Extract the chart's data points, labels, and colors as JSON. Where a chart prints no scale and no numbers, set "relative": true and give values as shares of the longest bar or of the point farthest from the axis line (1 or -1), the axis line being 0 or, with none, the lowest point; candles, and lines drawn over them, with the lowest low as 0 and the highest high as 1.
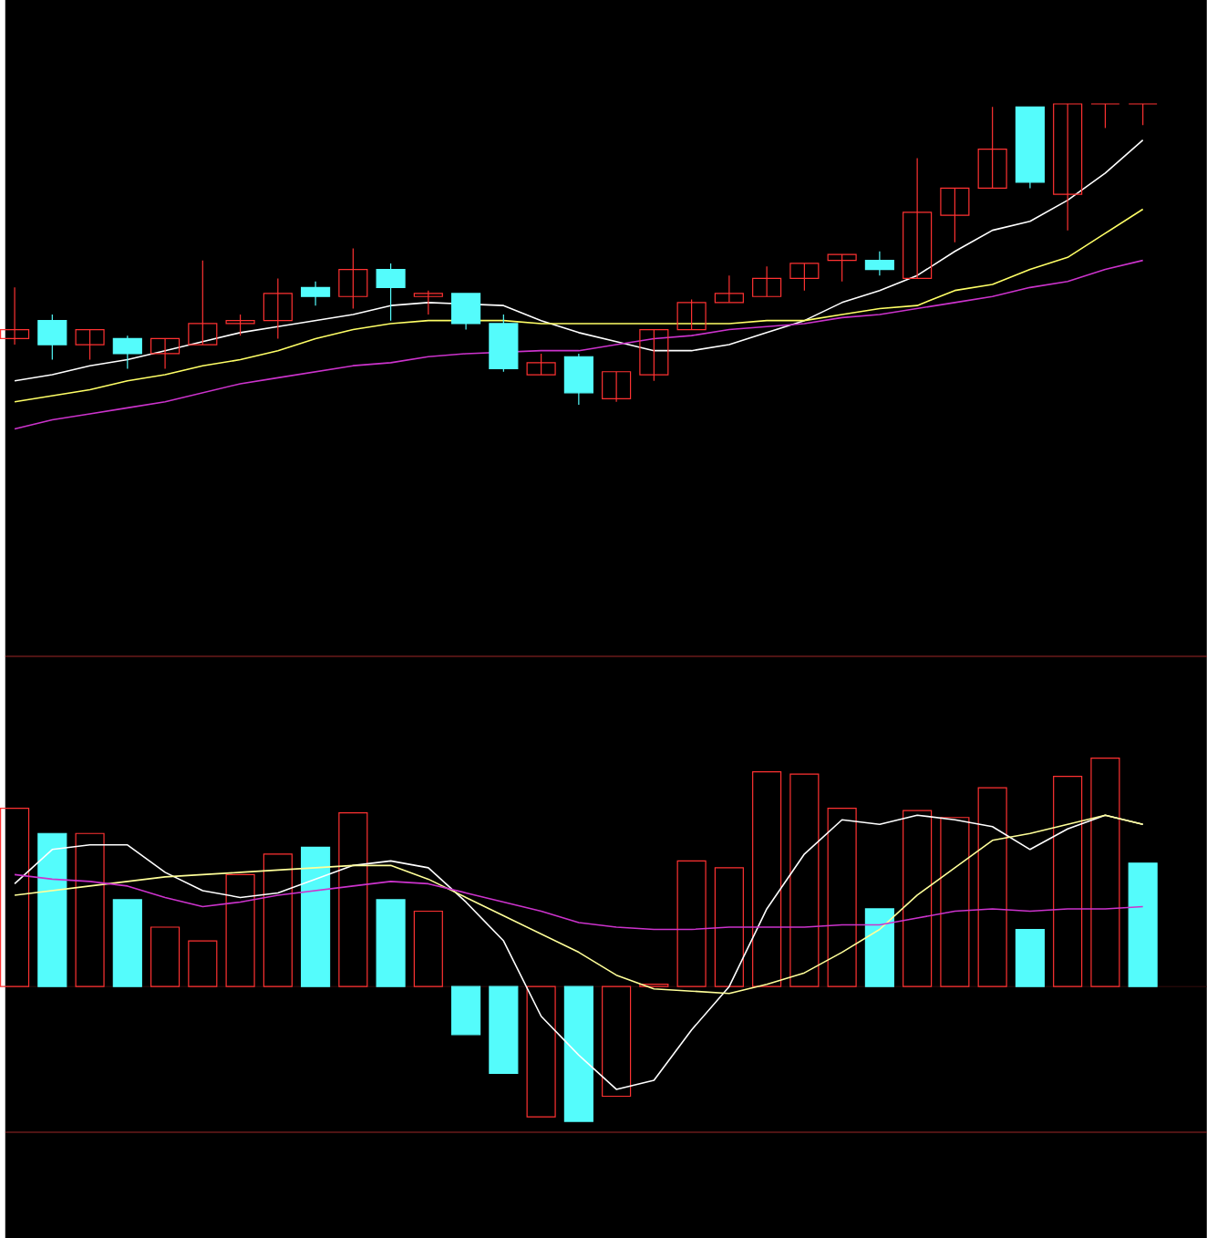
{
  "chart_data": [
    {
      "type": "candlestick",
      "relative": true,
      "categories": [
        null,
        null,
        null,
        null,
        null,
        null,
        null,
        null,
        null,
        null,
        null,
        null,
        null,
        null,
        null,
        null,
        null,
        null,
        null,
        null,
        null,
        null,
        null,
        null,
        null,
        null,
        null,
        null,
        null,
        null,
        null
      ],
      "ohlc": [
        [
          0.22,
          0.39,
          0.2,
          0.25
        ],
        [
          0.28,
          0.3,
          0.15,
          0.2
        ],
        [
          0.2,
          0.25,
          0.15,
          0.25
        ],
        [
          0.22,
          0.23,
          0.12,
          0.17
        ],
        [
          0.17,
          0.22,
          0.12,
          0.22
        ],
        [
          0.2,
          0.48,
          0.2,
          0.27
        ],
        [
          0.27,
          0.3,
          0.23,
          0.28
        ],
        [
          0.28,
          0.42,
          0.22,
          0.37
        ],
        [
          0.39,
          0.41,
          0.33,
          0.36
        ],
        [
          0.36,
          0.52,
          0.32,
          0.45
        ],
        [
          0.45,
          0.47,
          0.28,
          0.39
        ],
        [
          0.36,
          0.38,
          0.3,
          0.37
        ],
        [
          0.37,
          0.37,
          0.25,
          0.27
        ],
        [
          0.27,
          0.3,
          0.11,
          0.12
        ],
        [
          0.1,
          0.17,
          0.1,
          0.14
        ],
        [
          0.16,
          0.17,
          0,
          0.04
        ],
        [
          0.02,
          0.11,
          0.01,
          0.11
        ],
        [
          0.1,
          0.25,
          0.08,
          0.25
        ],
        [
          0.25,
          0.35,
          0.25,
          0.34
        ],
        [
          0.34,
          0.43,
          0.34,
          0.37
        ],
        [
          0.36,
          0.46,
          0.36,
          0.42
        ],
        [
          0.42,
          0.47,
          0.38,
          0.47
        ],
        [
          0.48,
          0.5,
          0.41,
          0.5
        ],
        [
          0.48,
          0.51,
          0.43,
          0.45
        ],
        [
          0.42,
          0.82,
          0.42,
          0.64
        ],
        [
          0.63,
          0.72,
          0.54,
          0.72
        ],
        [
          0.72,
          0.99,
          0.72,
          0.85
        ],
        [
          0.99,
          0.99,
          0.72,
          0.74
        ],
        [
          0.7,
          1,
          0.58,
          1
        ],
        [
          1,
          1,
          0.92,
          1
        ],
        [
          1,
          1,
          0.93,
          1
        ]
      ],
      "colors": [
        "#ff3232",
        "#54fcfc",
        "#ff3232",
        "#54fcfc",
        "#ff3232",
        "#ff3232",
        "#ff3232",
        "#ff3232",
        "#54fcfc",
        "#ff3232",
        "#54fcfc",
        "#ff3232",
        "#54fcfc",
        "#54fcfc",
        "#ff3232",
        "#54fcfc",
        "#ff3232",
        "#ff3232",
        "#ff3232",
        "#ff3232",
        "#ff3232",
        "#ff3232",
        "#ff3232",
        "#54fcfc",
        "#ff3232",
        "#ff3232",
        "#ff3232",
        "#54fcfc",
        "#ff3232",
        "#ff3232",
        "#ff3232"
      ],
      "series": [
        {
          "type": "line",
          "color": "#ffffff",
          "values": [
            0.08,
            0.1,
            0.13,
            0.15,
            0.18,
            0.21,
            0.24,
            0.26,
            0.28,
            0.3,
            0.33,
            0.34,
            null,
            0.33,
            0.28,
            0.24,
            0.21,
            0.18,
            0.18,
            0.2,
            0.24,
            0.28,
            0.34,
            0.38,
            0.43,
            0.51,
            0.58,
            0.61,
            0.68,
            0.77,
            0.88
          ]
        },
        {
          "type": "line",
          "color": "#ffff66",
          "values": [
            0.01,
            0.03,
            0.05,
            0.08,
            0.1,
            0.13,
            0.15,
            0.18,
            0.22,
            0.25,
            0.27,
            0.28,
            null,
            0.28,
            0.27,
            0.27,
            0.27,
            0.27,
            0.27,
            0.27,
            0.28,
            0.28,
            0.3,
            0.32,
            0.33,
            0.38,
            0.4,
            0.45,
            0.49,
            0.57,
            0.65
          ]
        },
        {
          "type": "line",
          "color": "#cc33cc",
          "values": [
            -0.08,
            -0.05,
            -0.03,
            -0.01,
            0.01,
            0.04,
            0.07,
            0.09,
            0.11,
            0.13,
            0.14,
            0.16,
            0.17,
            null,
            0.18,
            0.18,
            0.2,
            0.22,
            0.23,
            0.25,
            0.26,
            0.27,
            0.29,
            0.3,
            0.32,
            0.34,
            0.36,
            0.39,
            0.41,
            0.45,
            0.48
          ]
        }
      ]
    },
    {
      "type": "bar",
      "relative": true,
      "categories": [
        null,
        null,
        null,
        null,
        null,
        null,
        null,
        null,
        null,
        null,
        null,
        null,
        null,
        null,
        null,
        null,
        null,
        null,
        null,
        null,
        null,
        null,
        null,
        null,
        null,
        null,
        null,
        null,
        null,
        null,
        null
      ],
      "series": [
        {
          "type": "bar",
          "values": [
            0.78,
            0.67,
            0.67,
            0.38,
            0.26,
            0.2,
            0.49,
            0.58,
            0.61,
            0.76,
            0.38,
            0.33,
            -0.21,
            -0.38,
            -0.57,
            -0.59,
            -0.48,
            0.01,
            0.55,
            0.52,
            0.94,
            0.93,
            0.78,
            0.34,
            0.77,
            0.74,
            0.87,
            0.25,
            0.92,
            1,
            0.54
          ],
          "colors": [
            "#ff3232",
            "#54fcfc",
            "#ff3232",
            "#54fcfc",
            "#ff3232",
            "#ff3232",
            "#ff3232",
            "#ff3232",
            "#54fcfc",
            "#ff3232",
            "#54fcfc",
            "#ff3232",
            "#54fcfc",
            "#54fcfc",
            "#ff3232",
            "#54fcfc",
            "#ff3232",
            "#ff3232",
            "#ff3232",
            "#ff3232",
            "#ff3232",
            "#ff3232",
            "#ff3232",
            "#54fcfc",
            "#ff3232",
            "#ff3232",
            "#ff3232",
            "#54fcfc",
            "#ff3232",
            "#ff3232",
            "#54fcfc"
          ]
        },
        {
          "type": "line",
          "color": "#ffffff",
          "values": [
            0.45,
            0.6,
            0.62,
            0.62,
            0.5,
            0.42,
            0.39,
            0.41,
            0.47,
            0.53,
            0.55,
            0.52,
            0.37,
            0.2,
            -0.13,
            -0.3,
            -0.45,
            -0.41,
            -0.19,
            0.0,
            0.34,
            0.58,
            0.73,
            0.71,
            0.75,
            0.73,
            0.7,
            0.6,
            0.69,
            0.75,
            0.71
          ]
        },
        {
          "type": "line",
          "color": "#ffff99",
          "values": [
            0.4,
            0.42,
            0.44,
            0.46,
            0.48,
            0.49,
            0.5,
            0.51,
            0.52,
            0.53,
            0.53,
            0.47,
            0.39,
            0.31,
            0.23,
            0.15,
            0.05,
            -0.01,
            -0.02,
            -0.03,
            0.01,
            0.06,
            0.15,
            0.25,
            0.4,
            0.52,
            0.64,
            0.67,
            0.71,
            0.75,
            0.71
          ]
        },
        {
          "type": "line",
          "color": "#cc33cc",
          "values": [
            0.49,
            0.47,
            0.46,
            0.44,
            0.39,
            0.35,
            0.37,
            0.4,
            0.42,
            0.44,
            0.46,
            0.45,
            0.41,
            0.37,
            0.33,
            0.28,
            0.26,
            0.25,
            0.25,
            0.26,
            0.26,
            0.26,
            0.27,
            0.27,
            0.3,
            0.33,
            0.34,
            0.33,
            0.34,
            0.34,
            0.35
          ]
        }
      ]
    }
  ]
}
